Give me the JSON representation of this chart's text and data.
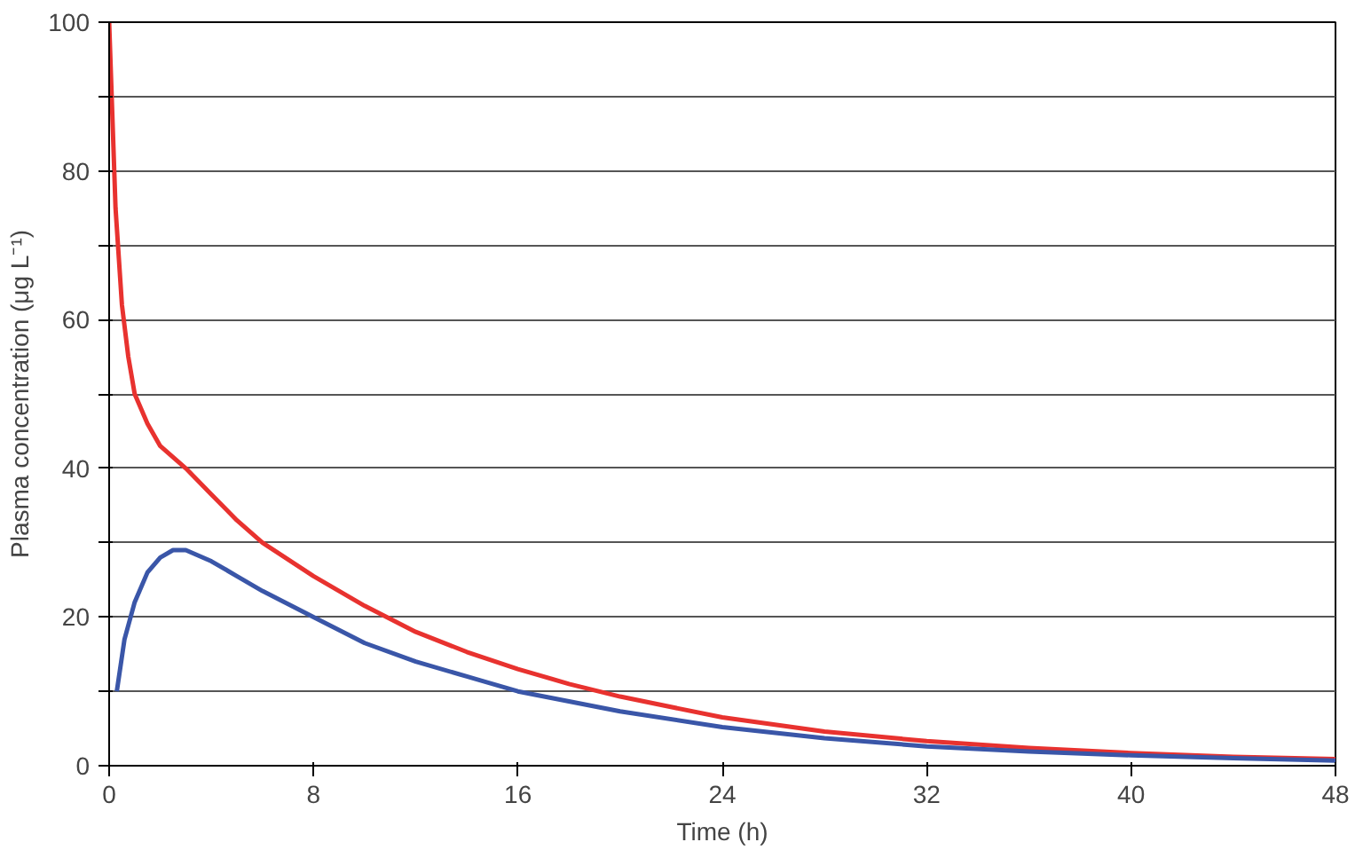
{
  "chart_data": {
    "type": "line",
    "xlabel": "Time (h)",
    "ylabel": "Plasma concentration (μg L⁻¹)",
    "xlim": [
      0,
      48
    ],
    "ylim": [
      0,
      100
    ],
    "xticks": [
      0,
      8,
      16,
      24,
      32,
      40,
      48
    ],
    "yticks": [
      0,
      {
        "value": 10,
        "label": null
      },
      20,
      {
        "value": 30,
        "label": null
      },
      40,
      {
        "value": 50,
        "label": null
      },
      60,
      {
        "value": 70,
        "label": null
      },
      80,
      {
        "value": 90,
        "label": null
      },
      100
    ],
    "grid": "y",
    "marker": "none",
    "line_style": "solid",
    "series": [
      {
        "color": "#e8322f",
        "x": [
          0,
          0.25,
          0.5,
          0.75,
          1,
          1.5,
          2,
          3,
          4,
          5,
          6,
          8,
          10,
          12,
          14,
          16,
          18,
          20,
          24,
          28,
          32,
          36,
          40,
          44,
          48
        ],
        "values": [
          100,
          75,
          62,
          55,
          50,
          46,
          43,
          40,
          36.5,
          33,
          30,
          25.5,
          21.5,
          18,
          15.3,
          13,
          11,
          9.3,
          6.5,
          4.6,
          3.3,
          2.4,
          1.7,
          1.2,
          0.9
        ]
      },
      {
        "color": "#3a56a8",
        "x": [
          0.3,
          0.6,
          1,
          1.5,
          2,
          2.5,
          3,
          4,
          5,
          6,
          8,
          10,
          12,
          14,
          16,
          20,
          24,
          28,
          32,
          36,
          40,
          44,
          48
        ],
        "values": [
          10,
          17,
          22,
          26,
          28,
          29,
          29,
          27.5,
          25.5,
          23.5,
          20,
          16.5,
          14,
          12,
          10,
          7.3,
          5.2,
          3.7,
          2.6,
          1.9,
          1.4,
          1,
          0.7
        ]
      }
    ]
  }
}
